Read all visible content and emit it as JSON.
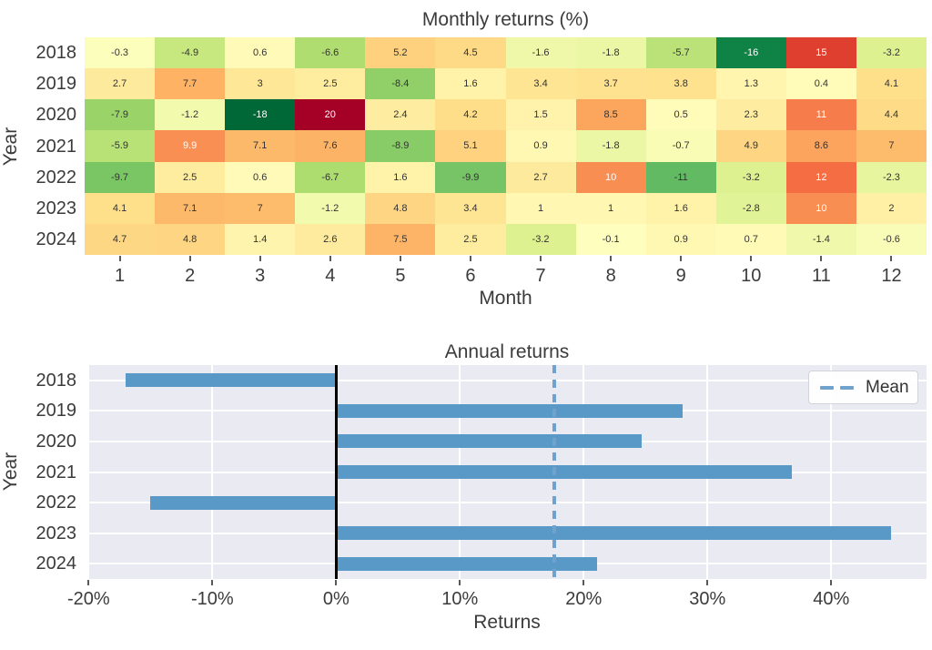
{
  "page": {
    "background": "#ffffff",
    "text_color": "#3b3b3b"
  },
  "chart_data": [
    {
      "type": "heatmap",
      "title": "Monthly returns (%)",
      "xlabel": "Month",
      "ylabel": "Year",
      "rows": [
        "2018",
        "2019",
        "2020",
        "2021",
        "2022",
        "2023",
        "2024"
      ],
      "columns": [
        "1",
        "2",
        "3",
        "4",
        "5",
        "6",
        "7",
        "8",
        "9",
        "10",
        "11",
        "12"
      ],
      "values": [
        [
          -0.3,
          -4.9,
          0.6,
          -6.6,
          5.2,
          4.5,
          -1.6,
          -1.8,
          -5.7,
          -16,
          15,
          -3.2
        ],
        [
          2.7,
          7.7,
          3,
          2.5,
          -8.4,
          1.6,
          3.4,
          3.7,
          3.8,
          1.3,
          0.4,
          4.1
        ],
        [
          -7.9,
          -1.2,
          -18,
          20,
          2.4,
          4.2,
          1.5,
          8.5,
          0.5,
          2.3,
          11,
          4.4
        ],
        [
          -5.9,
          9.9,
          7.1,
          7.6,
          -8.9,
          5.1,
          0.9,
          -1.8,
          -0.7,
          4.9,
          8.6,
          7
        ],
        [
          -9.7,
          2.5,
          0.6,
          -6.7,
          1.6,
          -9.9,
          2.7,
          10,
          -11,
          -3.2,
          12,
          -2.3
        ],
        [
          4.1,
          7.1,
          7,
          -1.2,
          4.8,
          3.4,
          1,
          1,
          1.6,
          -2.8,
          10,
          2
        ],
        [
          4.7,
          4.8,
          1.4,
          2.6,
          7.5,
          2.5,
          -3.2,
          -0.1,
          0.9,
          0.7,
          -1.4,
          -0.6
        ]
      ],
      "colormap": {
        "name": "RdYlGn_r",
        "anchors": [
          "#006837",
          "#1a9850",
          "#66bd63",
          "#a6d96a",
          "#d9ef8b",
          "#ffffbf",
          "#fee08b",
          "#fdae61",
          "#f46d43",
          "#d73027",
          "#a50026"
        ],
        "vmin": -18,
        "vmax": 20,
        "center": 0
      },
      "annotation": {
        "dark_text": "#333333",
        "light_text": "#ffffff",
        "white_text_cells": [
          [
            0,
            9
          ],
          [
            0,
            10
          ],
          [
            2,
            2
          ],
          [
            2,
            3
          ],
          [
            2,
            10
          ],
          [
            3,
            1
          ],
          [
            4,
            7
          ],
          [
            4,
            10
          ],
          [
            5,
            10
          ]
        ]
      },
      "grid": false
    },
    {
      "type": "bar",
      "orientation": "horizontal",
      "title": "Annual returns",
      "xlabel": "Returns",
      "ylabel": "Year",
      "categories": [
        "2018",
        "2019",
        "2020",
        "2021",
        "2022",
        "2023",
        "2024"
      ],
      "values": [
        -17,
        28,
        24.7,
        36.8,
        -15,
        44.8,
        21.1
      ],
      "mean": 17.6,
      "xlim": [
        -20.1,
        47.7
      ],
      "x_ticks": [
        {
          "v": -20,
          "label": "-20%"
        },
        {
          "v": -10,
          "label": "-10%"
        },
        {
          "v": 0,
          "label": "0%"
        },
        {
          "v": 10,
          "label": "10%"
        },
        {
          "v": 20,
          "label": "20%"
        },
        {
          "v": 30,
          "label": "30%"
        },
        {
          "v": 40,
          "label": "40%"
        }
      ],
      "legend": {
        "label": "Mean",
        "position": "upper right"
      },
      "colors": {
        "bar": "#5899c7",
        "mean_line": "#6fa2cd",
        "zero_line": "#000000",
        "plot_bg": "#eaeaf2",
        "grid": "#ffffff"
      },
      "grid": true
    }
  ]
}
